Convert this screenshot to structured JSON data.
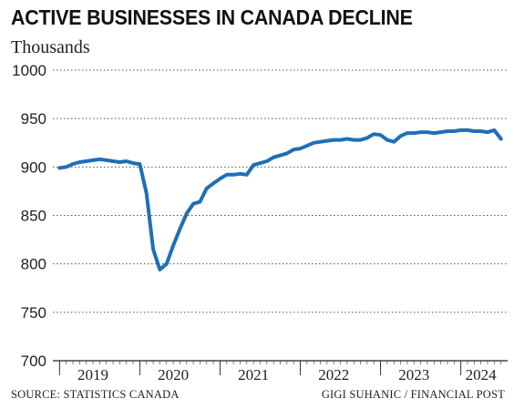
{
  "title": "ACTIVE BUSINESSES IN CANADA DECLINE",
  "subtitle": "Thousands",
  "source": "SOURCE: STATISTICS CANADA",
  "credit": "GIGI SUHANIC / FINANCIAL POST",
  "chart_data": {
    "type": "line",
    "title": "ACTIVE BUSINESSES IN CANADA DECLINE",
    "ylabel": "Thousands",
    "xlabel": "",
    "ylim": [
      700,
      1000
    ],
    "xlim": [
      "2018-12",
      "2024-08"
    ],
    "yticks": [
      700,
      750,
      800,
      850,
      900,
      950,
      1000
    ],
    "year_labels": [
      {
        "label": "2019",
        "x": "2019-06"
      },
      {
        "label": "2020",
        "x": "2020-06"
      },
      {
        "label": "2021",
        "x": "2021-06"
      },
      {
        "label": "2022",
        "x": "2022-06"
      },
      {
        "label": "2023",
        "x": "2023-06"
      },
      {
        "label": "2024",
        "x": "2024-04"
      }
    ],
    "grid": true,
    "line_color": "#1f6fb6",
    "series": [
      {
        "x": [
          "2019-01",
          "2019-02",
          "2019-03",
          "2019-04",
          "2019-05",
          "2019-06",
          "2019-07",
          "2019-08",
          "2019-09",
          "2019-10",
          "2019-11",
          "2019-12",
          "2020-01",
          "2020-02",
          "2020-03",
          "2020-04",
          "2020-05",
          "2020-06",
          "2020-07",
          "2020-08",
          "2020-09",
          "2020-10",
          "2020-11",
          "2020-12",
          "2021-01",
          "2021-02",
          "2021-03",
          "2021-04",
          "2021-05",
          "2021-06",
          "2021-07",
          "2021-08",
          "2021-09",
          "2021-10",
          "2021-11",
          "2021-12",
          "2022-01",
          "2022-02",
          "2022-03",
          "2022-04",
          "2022-05",
          "2022-06",
          "2022-07",
          "2022-08",
          "2022-09",
          "2022-10",
          "2022-11",
          "2022-12",
          "2023-01",
          "2023-02",
          "2023-03",
          "2023-04",
          "2023-05",
          "2023-06",
          "2023-07",
          "2023-08",
          "2023-09",
          "2023-10",
          "2023-11",
          "2023-12",
          "2024-01",
          "2024-02",
          "2024-03",
          "2024-04",
          "2024-05",
          "2024-06",
          "2024-07"
        ],
        "y": [
          899,
          900,
          903,
          905,
          906,
          907,
          908,
          907,
          906,
          905,
          906,
          904,
          903,
          873,
          815,
          794,
          800,
          819,
          836,
          852,
          862,
          864,
          878,
          883,
          888,
          892,
          892,
          893,
          892,
          902,
          904,
          906,
          910,
          912,
          914,
          918,
          919,
          922,
          925,
          926,
          927,
          928,
          928,
          929,
          928,
          928,
          930,
          934,
          933,
          928,
          926,
          932,
          935,
          935,
          936,
          936,
          935,
          936,
          937,
          937,
          938,
          938,
          937,
          937,
          936,
          938,
          929
        ]
      }
    ]
  }
}
